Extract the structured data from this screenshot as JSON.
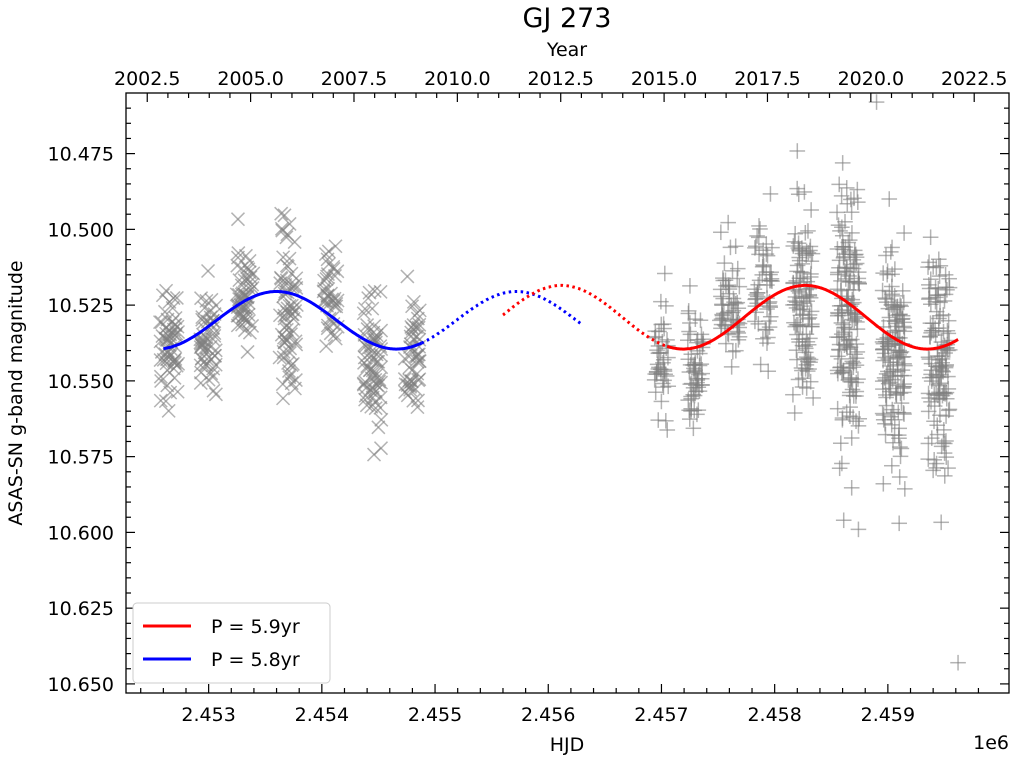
{
  "chart_data": {
    "type": "scatter",
    "title": "GJ 273",
    "xlabel": "HJD",
    "x_offset_label": "1e6",
    "ylabel": "ASAS-SN g-band magnitude",
    "top_xlabel": "Year",
    "xlim": [
      2452270,
      2460070
    ],
    "ylim": [
      10.653,
      10.455
    ],
    "y_inverted": true,
    "grid": false,
    "legend_position": "lower-left",
    "x_ticks": [
      2453000,
      2454000,
      2455000,
      2456000,
      2457000,
      2458000,
      2459000
    ],
    "x_tick_labels": [
      "2.453",
      "2.454",
      "2.455",
      "2.456",
      "2.457",
      "2.458",
      "2.459"
    ],
    "y_ticks": [
      10.475,
      10.5,
      10.525,
      10.55,
      10.575,
      10.6,
      10.625,
      10.65
    ],
    "y_tick_labels": [
      "10.475",
      "10.500",
      "10.525",
      "10.550",
      "10.575",
      "10.600",
      "10.625",
      "10.650"
    ],
    "top_x_ticks": [
      2002.5,
      2005.0,
      2007.5,
      2010.0,
      2012.5,
      2015.0,
      2017.5,
      2020.0,
      2022.5
    ],
    "top_x_tick_labels": [
      "2002.5",
      "2005.0",
      "2007.5",
      "2010.0",
      "2012.5",
      "2015.0",
      "2017.5",
      "2020.0",
      "2022.5"
    ],
    "colors": {
      "data": "#808080",
      "fit_red": "#ff0000",
      "fit_blue": "#0000ff"
    },
    "scatter_series": [
      {
        "marker": "x",
        "color": "#808080",
        "clusters": [
          {
            "center": 2452650,
            "width": 160,
            "mean": 10.537,
            "sd": 0.009,
            "count": 60
          },
          {
            "center": 2453000,
            "width": 150,
            "mean": 10.537,
            "sd": 0.008,
            "count": 55
          },
          {
            "center": 2453320,
            "width": 150,
            "mean": 10.522,
            "sd": 0.01,
            "count": 55
          },
          {
            "center": 2453700,
            "width": 160,
            "mean": 10.528,
            "sd": 0.017,
            "count": 70
          },
          {
            "center": 2454080,
            "width": 130,
            "mean": 10.523,
            "sd": 0.011,
            "count": 40
          },
          {
            "center": 2454450,
            "width": 160,
            "mean": 10.545,
            "sd": 0.012,
            "count": 70
          },
          {
            "center": 2454800,
            "width": 140,
            "mean": 10.54,
            "sd": 0.012,
            "count": 50
          }
        ]
      },
      {
        "marker": "+",
        "color": "#808080",
        "clusters": [
          {
            "center": 2457000,
            "width": 120,
            "mean": 10.542,
            "sd": 0.01,
            "count": 45
          },
          {
            "center": 2457300,
            "width": 140,
            "mean": 10.543,
            "sd": 0.01,
            "count": 60
          },
          {
            "center": 2457600,
            "width": 180,
            "mean": 10.525,
            "sd": 0.009,
            "count": 60
          },
          {
            "center": 2457900,
            "width": 160,
            "mean": 10.52,
            "sd": 0.01,
            "count": 55
          },
          {
            "center": 2458250,
            "width": 180,
            "mean": 10.526,
            "sd": 0.017,
            "count": 110
          },
          {
            "center": 2458650,
            "width": 200,
            "mean": 10.527,
            "sd": 0.022,
            "count": 160
          },
          {
            "center": 2459050,
            "width": 200,
            "mean": 10.542,
            "sd": 0.018,
            "count": 150
          },
          {
            "center": 2459450,
            "width": 200,
            "mean": 10.543,
            "sd": 0.02,
            "count": 130
          }
        ],
        "outliers": [
          {
            "x": 2459620,
            "y": 10.643
          },
          {
            "x": 2458610,
            "y": 10.596
          },
          {
            "x": 2458740,
            "y": 10.599
          },
          {
            "x": 2459100,
            "y": 10.597
          },
          {
            "x": 2458900,
            "y": 10.458
          }
        ]
      }
    ],
    "fits": [
      {
        "name": "P = 5.8yr",
        "color": "#0000ff",
        "period_years": 5.8,
        "mean": 10.53,
        "amplitude": 0.0095,
        "min_brightness_hjd": 2453600,
        "solid_range": [
          2452600,
          2454880
        ],
        "dotted_range": [
          2454880,
          2456300
        ]
      },
      {
        "name": "P = 5.9yr",
        "color": "#ff0000",
        "period_years": 5.9,
        "mean": 10.529,
        "amplitude": 0.0105,
        "min_brightness_hjd": 2458270,
        "solid_range": [
          2457050,
          2459620
        ],
        "dotted_range": [
          2455600,
          2457050
        ]
      }
    ],
    "legend": [
      "P = 5.9yr",
      "P = 5.8yr"
    ]
  }
}
